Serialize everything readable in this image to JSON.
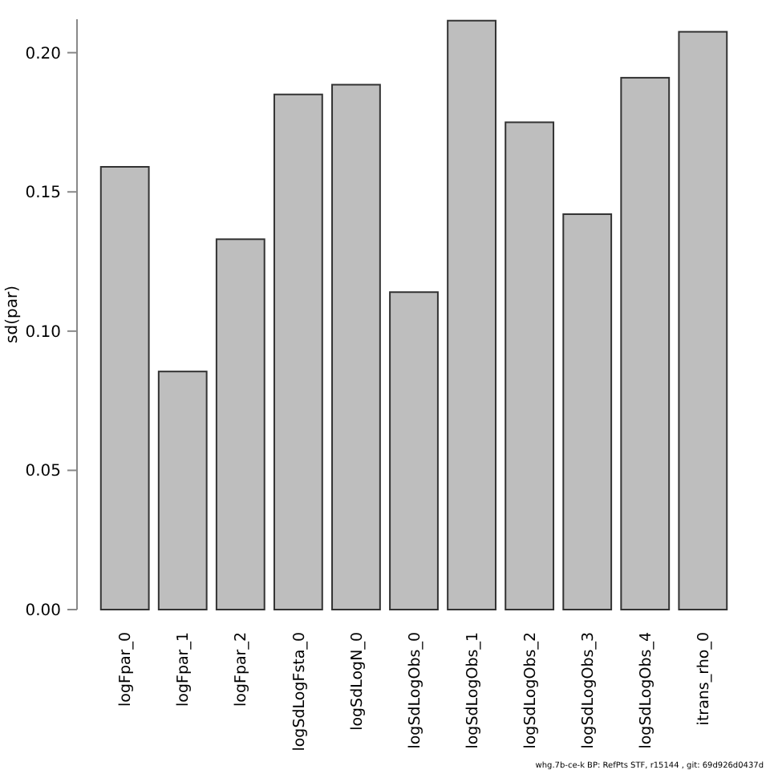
{
  "chart_data": {
    "type": "bar",
    "ylabel": "sd(par)",
    "categories": [
      "logFpar_0",
      "logFpar_1",
      "logFpar_2",
      "logSdLogFsta_0",
      "logSdLogN_0",
      "logSdLogObs_0",
      "logSdLogObs_1",
      "logSdLogObs_2",
      "logSdLogObs_3",
      "logSdLogObs_4",
      "itrans_rho_0"
    ],
    "values": [
      0.159,
      0.0855,
      0.133,
      0.185,
      0.1885,
      0.114,
      0.2115,
      0.175,
      0.142,
      0.191,
      0.2075
    ],
    "color": "#bebebe",
    "ylim": [
      0,
      0.212
    ],
    "yticks": [
      {
        "value": 0,
        "label": "0.00"
      },
      {
        "value": 0.05,
        "label": "0.05"
      },
      {
        "value": 0.1,
        "label": "0.10"
      },
      {
        "value": 0.15,
        "label": "0.15"
      },
      {
        "value": 0.2,
        "label": "0.20"
      }
    ],
    "grid": false,
    "annotations": [
      "whg.7b-ce-k  BP: RefPts  STF, r15144 , git: 69d926d0437d"
    ]
  }
}
